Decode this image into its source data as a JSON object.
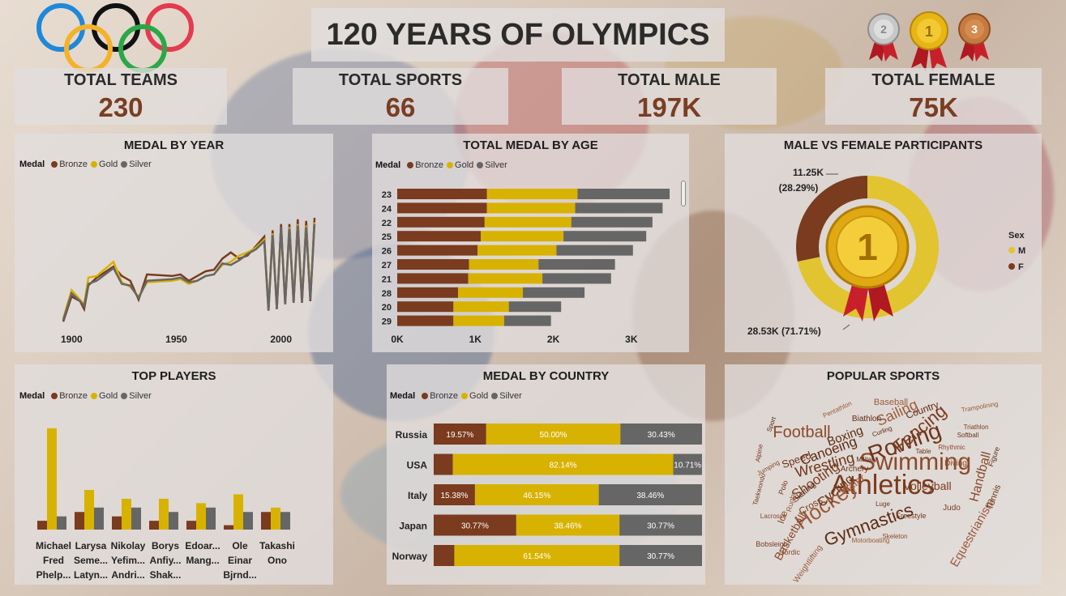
{
  "header": {
    "title": "120 YEARS OF OLYMPICS"
  },
  "kpis": [
    {
      "title": "TOTAL TEAMS",
      "value": "230"
    },
    {
      "title": "TOTAL SPORTS",
      "value": "66"
    },
    {
      "title": "TOTAL MALE",
      "value": "197K"
    },
    {
      "title": "TOTAL FEMALE",
      "value": "75K"
    }
  ],
  "medals": {
    "silver_label": "2",
    "gold_label": "1",
    "bronze_label": "3"
  },
  "legend": {
    "label": "Medal",
    "bronze": "Bronze",
    "gold": "Gold",
    "silver": "Silver"
  },
  "colors": {
    "bronze": "#7a3b1e",
    "gold": "#d8b200",
    "silver": "#666666",
    "male": "#e2c430",
    "female": "#7a3b1e"
  },
  "panels": {
    "medal_by_year": "MEDAL BY YEAR",
    "medal_by_age": "TOTAL MEDAL BY AGE",
    "male_female": "MALE VS FEMALE PARTICIPANTS",
    "top_players": "TOP PLAYERS",
    "medal_by_country": "MEDAL BY COUNTRY",
    "popular_sports": "POPULAR SPORTS"
  },
  "chart_data": [
    {
      "id": "medal_by_year",
      "type": "line",
      "title": "MEDAL BY YEAR",
      "x_ticks": [
        "1900",
        "1950",
        "2000"
      ],
      "x": [
        1896,
        1900,
        1904,
        1906,
        1908,
        1912,
        1920,
        1924,
        1928,
        1932,
        1936,
        1948,
        1952,
        1956,
        1960,
        1964,
        1968,
        1972,
        1976,
        1980,
        1984,
        1988,
        1992,
        1994,
        1996,
        1998,
        2000,
        2002,
        2004,
        2006,
        2008,
        2010,
        2012,
        2014,
        2016
      ],
      "series": [
        {
          "name": "Bronze",
          "values": [
            40,
            200,
            170,
            120,
            270,
            320,
            390,
            330,
            300,
            180,
            340,
            330,
            340,
            300,
            330,
            360,
            370,
            440,
            480,
            440,
            460,
            520,
            580,
            110,
            620,
            120,
            660,
            150,
            660,
            160,
            690,
            160,
            680,
            170,
            700
          ]
        },
        {
          "name": "Gold",
          "values": [
            60,
            240,
            180,
            150,
            320,
            330,
            420,
            290,
            260,
            200,
            290,
            300,
            310,
            280,
            300,
            330,
            340,
            400,
            420,
            460,
            480,
            510,
            560,
            110,
            600,
            130,
            630,
            150,
            640,
            170,
            660,
            170,
            650,
            200,
            670
          ]
        },
        {
          "name": "Silver",
          "values": [
            50,
            220,
            170,
            140,
            280,
            300,
            380,
            280,
            270,
            190,
            300,
            310,
            320,
            290,
            300,
            330,
            340,
            410,
            400,
            430,
            470,
            500,
            550,
            110,
            590,
            120,
            640,
            150,
            630,
            160,
            650,
            160,
            640,
            180,
            660
          ]
        }
      ]
    },
    {
      "id": "medal_by_age",
      "type": "bar",
      "stacked": true,
      "orientation": "horizontal",
      "title": "TOTAL MEDAL BY AGE",
      "categories": [
        "23",
        "24",
        "22",
        "25",
        "26",
        "27",
        "21",
        "28",
        "20",
        "29"
      ],
      "x_ticks": [
        "0K",
        "1K",
        "2K",
        "3K"
      ],
      "xlim": [
        0,
        3500
      ],
      "series": [
        {
          "name": "Bronze",
          "values": [
            1150,
            1150,
            1120,
            1070,
            1030,
            920,
            910,
            780,
            720,
            720
          ]
        },
        {
          "name": "Gold",
          "values": [
            1160,
            1130,
            1110,
            1060,
            1010,
            890,
            950,
            830,
            710,
            650
          ]
        },
        {
          "name": "Silver",
          "values": [
            1180,
            1120,
            1040,
            1060,
            980,
            980,
            880,
            790,
            670,
            600
          ]
        }
      ]
    },
    {
      "id": "male_female",
      "type": "pie",
      "title": "MALE VS FEMALE PARTICIPANTS",
      "legend_title": "Sex",
      "slices": [
        {
          "label": "M",
          "value": 28.53,
          "text": "28.53K (71.71%)"
        },
        {
          "label": "F",
          "value": 11.25,
          "text": "11.25K (28.29%)"
        }
      ]
    },
    {
      "id": "top_players",
      "type": "bar",
      "title": "TOP PLAYERS",
      "categories": [
        [
          "Michael",
          "Fred",
          "Phelp..."
        ],
        [
          "Larysa",
          "Seme...",
          "Latyn..."
        ],
        [
          "Nikolay",
          "Yefim...",
          "Andri..."
        ],
        [
          "Borys",
          "Anfiy...",
          "Shak..."
        ],
        [
          "Edoar...",
          "Mang..."
        ],
        [
          "Ole",
          "Einar",
          "Bjrnd..."
        ],
        [
          "Takashi",
          "Ono"
        ]
      ],
      "ylim": [
        0,
        25
      ],
      "series": [
        {
          "name": "Bronze",
          "values": [
            2,
            4,
            3,
            2,
            2,
            1,
            4
          ]
        },
        {
          "name": "Gold",
          "values": [
            23,
            9,
            7,
            7,
            6,
            8,
            5
          ]
        },
        {
          "name": "Silver",
          "values": [
            3,
            5,
            5,
            4,
            5,
            4,
            4
          ]
        }
      ]
    },
    {
      "id": "medal_by_country",
      "type": "bar",
      "stacked": true,
      "percent": true,
      "orientation": "horizontal",
      "title": "MEDAL BY COUNTRY",
      "categories": [
        "Russia",
        "USA",
        "Italy",
        "Japan",
        "Norway"
      ],
      "series": [
        {
          "name": "Bronze",
          "values": [
            19.57,
            7.14,
            15.38,
            30.77,
            7.69
          ],
          "labels": [
            "19.57%",
            "",
            "15.38%",
            "30.77%",
            ""
          ]
        },
        {
          "name": "Gold",
          "values": [
            50.0,
            82.14,
            46.15,
            38.46,
            61.54
          ],
          "labels": [
            "50.00%",
            "82.14%",
            "46.15%",
            "38.46%",
            "61.54%"
          ]
        },
        {
          "name": "Silver",
          "values": [
            30.43,
            10.71,
            38.46,
            30.77,
            30.77
          ],
          "labels": [
            "30.43%",
            "10.71%",
            "38.46%",
            "30.77%",
            "30.77%"
          ]
        }
      ]
    }
  ],
  "word_cloud": [
    {
      "text": "Athletics",
      "size": 34
    },
    {
      "text": "Swimming",
      "size": 30
    },
    {
      "text": "Rowing",
      "size": 28
    },
    {
      "text": "Hockey",
      "size": 26
    },
    {
      "text": "Gymnastics",
      "size": 22
    },
    {
      "text": "Fencing",
      "size": 22
    },
    {
      "text": "Football",
      "size": 20
    },
    {
      "text": "Wrestling",
      "size": 18
    },
    {
      "text": "Sailing",
      "size": 18
    },
    {
      "text": "Canoeing",
      "size": 17
    },
    {
      "text": "Shooting",
      "size": 17
    },
    {
      "text": "Handball",
      "size": 16
    },
    {
      "text": "Cycling",
      "size": 16
    },
    {
      "text": "Equestrianism",
      "size": 15
    },
    {
      "text": "Boxing",
      "size": 15
    },
    {
      "text": "Volleyball",
      "size": 14
    },
    {
      "text": "Basketball",
      "size": 14
    },
    {
      "text": "Speed",
      "size": 13
    },
    {
      "text": "Water",
      "size": 13
    },
    {
      "text": "Country",
      "size": 12
    },
    {
      "text": "Cross",
      "size": 12
    },
    {
      "text": "Ice",
      "size": 12
    },
    {
      "text": "Tennis",
      "size": 11
    },
    {
      "text": "Baseball",
      "size": 11
    },
    {
      "text": "Biathlon",
      "size": 10
    },
    {
      "text": "Judo",
      "size": 10
    },
    {
      "text": "Diving",
      "size": 10
    },
    {
      "text": "Archery",
      "size": 10
    },
    {
      "text": "Weightlifting",
      "size": 10
    },
    {
      "text": "Skating",
      "size": 10
    },
    {
      "text": "Bobsleigh",
      "size": 9
    },
    {
      "text": "Nordic",
      "size": 9
    },
    {
      "text": "Polo",
      "size": 9
    },
    {
      "text": "Rugby",
      "size": 9
    },
    {
      "text": "Figure",
      "size": 9
    },
    {
      "text": "Freestyle",
      "size": 9
    },
    {
      "text": "Skeleton",
      "size": 8
    },
    {
      "text": "Luge",
      "size": 8
    },
    {
      "text": "Pentathlon",
      "size": 8
    },
    {
      "text": "Curling",
      "size": 8
    },
    {
      "text": "Triathlon",
      "size": 8
    },
    {
      "text": "Rhythmic",
      "size": 8
    },
    {
      "text": "Table",
      "size": 8
    },
    {
      "text": "Trampolining",
      "size": 8
    },
    {
      "text": "Sport",
      "size": 8
    },
    {
      "text": "Taekwondo",
      "size": 8
    },
    {
      "text": "Jumping",
      "size": 8
    },
    {
      "text": "Softball",
      "size": 8
    },
    {
      "text": "Motorboating",
      "size": 8
    },
    {
      "text": "Military",
      "size": 8
    },
    {
      "text": "Alpine",
      "size": 8
    },
    {
      "text": "Lacrosse",
      "size": 8
    }
  ]
}
